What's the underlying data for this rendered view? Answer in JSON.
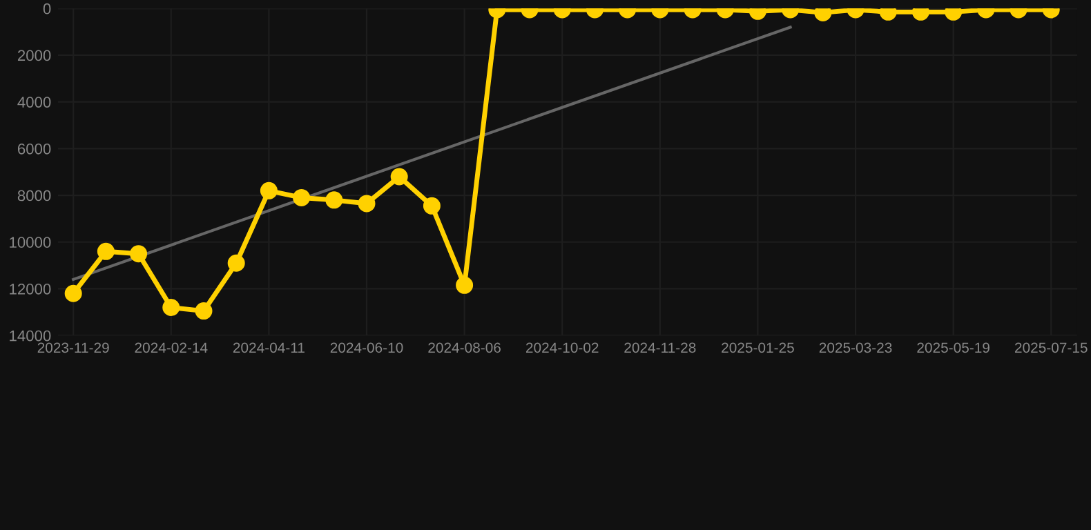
{
  "chart_data": {
    "type": "line",
    "categories": [
      "2023-11-29",
      null,
      null,
      "2024-02-14",
      null,
      null,
      "2024-04-11",
      null,
      null,
      "2024-06-10",
      null,
      null,
      "2024-08-06",
      null,
      null,
      "2024-10-02",
      null,
      null,
      "2024-11-28",
      null,
      null,
      "2025-01-25",
      null,
      null,
      "2025-03-23",
      null,
      null,
      "2025-05-19",
      null,
      null,
      "2025-07-15"
    ],
    "series": [
      {
        "color": "#ffd100",
        "marker": "circle",
        "values": [
          12200,
          10400,
          10500,
          12800,
          12950,
          10900,
          7800,
          8100,
          8200,
          8350,
          7200,
          8450,
          11850,
          50,
          50,
          50,
          50,
          50,
          50,
          50,
          50,
          120,
          50,
          180,
          50,
          150,
          150,
          150,
          50,
          50,
          50
        ]
      },
      {
        "color": "#666666",
        "marker": "none",
        "values": [
          11600,
          null,
          null,
          null,
          null,
          null,
          null,
          null,
          null,
          null,
          null,
          null,
          null,
          null,
          null,
          null,
          null,
          null,
          null,
          null,
          null,
          null,
          800,
          null,
          null,
          null,
          null,
          null,
          null,
          null,
          null
        ]
      }
    ],
    "ylim": [
      14000,
      0
    ],
    "yticks": [
      0,
      2000,
      4000,
      6000,
      8000,
      10000,
      12000,
      14000
    ],
    "grid": true,
    "legend": false
  }
}
